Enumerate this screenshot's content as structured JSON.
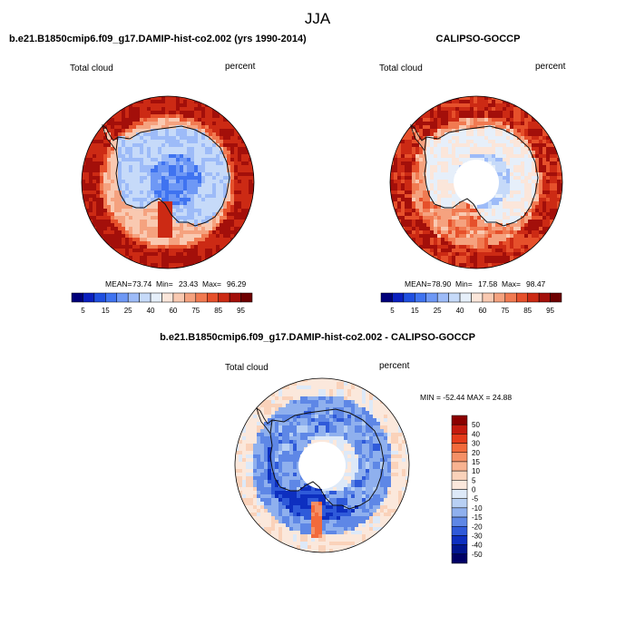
{
  "page_title": "JJA",
  "chart_data": [
    {
      "type": "heatmap",
      "projection": "south-polar-stereographic",
      "title": "b.e21.B1850cmip6.f09_g17.DAMIP-hist-co2.002 (yrs 1990-2014)",
      "variable": "Total cloud",
      "units": "percent",
      "stats": {
        "mean_label": "MEAN=",
        "mean": "73.74",
        "min_label": "Min=",
        "min": "23.43",
        "max_label": "Max=",
        "max": "96.29"
      },
      "colorbar": {
        "orientation": "horizontal",
        "levels": [
          5,
          10,
          15,
          20,
          25,
          30,
          40,
          50,
          60,
          70,
          75,
          80,
          85,
          90,
          95
        ],
        "tick_labels": [
          "5",
          "15",
          "25",
          "40",
          "60",
          "75",
          "85",
          "95"
        ],
        "colors": [
          "#00007a",
          "#0a1fbf",
          "#1f4fe0",
          "#3f73f0",
          "#6e98f5",
          "#9dbbf8",
          "#c6daf9",
          "#e6effa",
          "#fbe6da",
          "#f9c9b1",
          "#f5a27f",
          "#f17a51",
          "#e6502b",
          "#cc2a14",
          "#a30f0a",
          "#6e0000"
        ]
      },
      "field_summary": {
        "ocean_ring": 90,
        "sea_ice_zone": 80,
        "east_antarctica": 25,
        "plateau_core": 15,
        "antarctic_peninsula": 60,
        "weddell_sea_tongue": 85
      }
    },
    {
      "type": "heatmap",
      "projection": "south-polar-stereographic",
      "title": "CALIPSO-GOCCP",
      "variable": "Total cloud",
      "units": "percent",
      "missing_region": "south-pole-hole",
      "stats": {
        "mean_label": "MEAN=",
        "mean": "78.90",
        "min_label": "Min=",
        "min": "17.58",
        "max_label": "Max=",
        "max": "98.47"
      },
      "colorbar": {
        "orientation": "horizontal",
        "levels": [
          5,
          10,
          15,
          20,
          25,
          30,
          40,
          50,
          60,
          70,
          75,
          80,
          85,
          90,
          95
        ],
        "tick_labels": [
          "5",
          "15",
          "25",
          "40",
          "60",
          "75",
          "85",
          "95"
        ],
        "colors": [
          "#00007a",
          "#0a1fbf",
          "#1f4fe0",
          "#3f73f0",
          "#6e98f5",
          "#9dbbf8",
          "#c6daf9",
          "#e6effa",
          "#fbe6da",
          "#f9c9b1",
          "#f5a27f",
          "#f17a51",
          "#e6502b",
          "#cc2a14",
          "#a30f0a",
          "#6e0000"
        ]
      },
      "field_summary": {
        "ocean_ring": 88,
        "sea_ice_zone": 75,
        "east_antarctica": 40,
        "plateau_core": 25,
        "antarctic_peninsula": 70
      }
    },
    {
      "type": "heatmap",
      "projection": "south-polar-stereographic",
      "title": "b.e21.B1850cmip6.f09_g17.DAMIP-hist-co2.002 - CALIPSO-GOCCP",
      "variable": "Total cloud",
      "units": "percent",
      "missing_region": "south-pole-hole",
      "stats": {
        "text": "MIN = -52.44  MAX = 24.88",
        "min": -52.44,
        "max": 24.88
      },
      "colorbar": {
        "orientation": "vertical",
        "levels": [
          50,
          40,
          30,
          20,
          15,
          10,
          5,
          0,
          -5,
          -10,
          -15,
          -20,
          -30,
          -40,
          -50
        ],
        "tick_labels": [
          "50",
          "40",
          "30",
          "20",
          "15",
          "10",
          "5",
          "0",
          "-5",
          "-10",
          "-15",
          "-20",
          "-30",
          "-40",
          "-50"
        ],
        "colors": [
          "#8b0000",
          "#c41a0e",
          "#e53b1a",
          "#f26a3b",
          "#f59066",
          "#f8b391",
          "#fad2ba",
          "#fbe8dc",
          "#dde9f8",
          "#b8d0f4",
          "#8fb0ee",
          "#5e87e6",
          "#2f5ad9",
          "#0d2fc0",
          "#01158f",
          "#000066"
        ]
      },
      "field_summary": {
        "ocean_ring": 3,
        "coastal_belt": -15,
        "ice_shelf_dipole_min": -40,
        "weddell_positive_anomaly": 24
      }
    }
  ]
}
